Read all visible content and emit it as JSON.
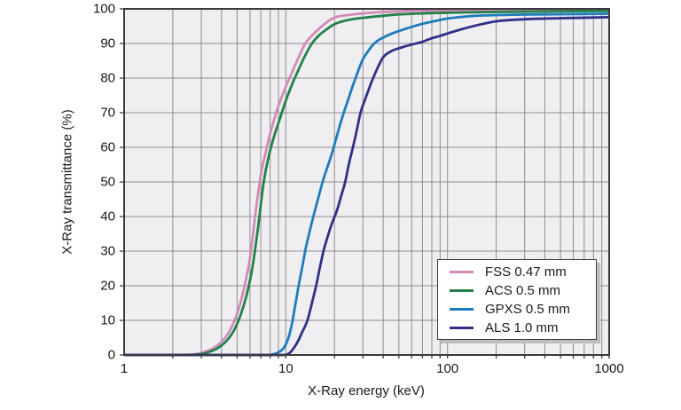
{
  "figure": {
    "background": "#ffffff",
    "plot_bg": "#efeef0",
    "grid_color": "#8f8c91",
    "frame_color": "#3c393d",
    "text_color": "#1a1a1a",
    "legend_shadow": "#c0bcc1"
  },
  "chart_data": {
    "type": "line",
    "title": "",
    "xlabel": "X-Ray energy (keV)",
    "ylabel": "X-Ray transmittance (%)",
    "x_scale": "log",
    "xlim": [
      1,
      1000
    ],
    "ylim": [
      0,
      100
    ],
    "grid": "on",
    "legend_position": "inside-lower-right",
    "x_ticks": [
      1,
      10,
      100,
      1000
    ],
    "y_ticks": [
      0,
      10,
      20,
      30,
      40,
      50,
      60,
      70,
      80,
      90,
      100
    ],
    "series": [
      {
        "name": "FSS 0.47 mm",
        "color": "#d38ab8",
        "points": [
          [
            1,
            0
          ],
          [
            2,
            0
          ],
          [
            2.6,
            0.1
          ],
          [
            3,
            0.6
          ],
          [
            3.5,
            1.8
          ],
          [
            4,
            3.8
          ],
          [
            4.5,
            7
          ],
          [
            5,
            12
          ],
          [
            5.5,
            19
          ],
          [
            6,
            28
          ],
          [
            6.5,
            41
          ],
          [
            7,
            52
          ],
          [
            7.5,
            58.5
          ],
          [
            8,
            64
          ],
          [
            9,
            72
          ],
          [
            10,
            77.5
          ],
          [
            11,
            82
          ],
          [
            12,
            86
          ],
          [
            13.2,
            90
          ],
          [
            14,
            91.5
          ],
          [
            16,
            94.2
          ],
          [
            18,
            96.2
          ],
          [
            20,
            97.5
          ],
          [
            25,
            98.3
          ],
          [
            30,
            98.7
          ],
          [
            40,
            99.1
          ],
          [
            60,
            99.4
          ],
          [
            100,
            99.6
          ],
          [
            200,
            99.7
          ],
          [
            400,
            99.8
          ],
          [
            1000,
            99.9
          ]
        ]
      },
      {
        "name": "ACS 0.5 mm",
        "color": "#23814a",
        "points": [
          [
            1,
            0
          ],
          [
            2.2,
            0
          ],
          [
            2.8,
            0.1
          ],
          [
            3.2,
            0.6
          ],
          [
            3.7,
            1.7
          ],
          [
            4.2,
            3.6
          ],
          [
            4.7,
            6.5
          ],
          [
            5.2,
            11
          ],
          [
            5.7,
            17
          ],
          [
            6.2,
            25
          ],
          [
            6.7,
            36
          ],
          [
            7.3,
            50
          ],
          [
            7.8,
            57
          ],
          [
            8.5,
            63.5
          ],
          [
            9,
            67
          ],
          [
            10,
            73.5
          ],
          [
            11,
            78.5
          ],
          [
            12,
            82.5
          ],
          [
            13,
            86
          ],
          [
            14.5,
            90
          ],
          [
            16,
            92.3
          ],
          [
            18,
            94.2
          ],
          [
            20,
            95.6
          ],
          [
            25,
            96.9
          ],
          [
            30,
            97.4
          ],
          [
            40,
            98
          ],
          [
            50,
            98.4
          ],
          [
            70,
            98.7
          ],
          [
            100,
            98.9
          ],
          [
            200,
            99.1
          ],
          [
            500,
            99.3
          ],
          [
            1000,
            99.4
          ]
        ]
      },
      {
        "name": "GPXS 0.5 mm",
        "color": "#1d7cbd",
        "points": [
          [
            1,
            0
          ],
          [
            4,
            0
          ],
          [
            6.5,
            0
          ],
          [
            7.8,
            0
          ],
          [
            8.5,
            0.3
          ],
          [
            9,
            0.8
          ],
          [
            9.7,
            2
          ],
          [
            10.3,
            4.5
          ],
          [
            10.8,
            8
          ],
          [
            11.4,
            14
          ],
          [
            12,
            20
          ],
          [
            12.7,
            26
          ],
          [
            13.3,
            31
          ],
          [
            14,
            35.5
          ],
          [
            15,
            41
          ],
          [
            16,
            46
          ],
          [
            17,
            50.5
          ],
          [
            18.3,
            55
          ],
          [
            19.5,
            59
          ],
          [
            20.6,
            63
          ],
          [
            21.8,
            67
          ],
          [
            23,
            70.5
          ],
          [
            24.2,
            73.5
          ],
          [
            25.6,
            77
          ],
          [
            27,
            80
          ],
          [
            28.5,
            83
          ],
          [
            30,
            85.5
          ],
          [
            32,
            87.5
          ],
          [
            34.4,
            89.5
          ],
          [
            37,
            90.8
          ],
          [
            40,
            91.7
          ],
          [
            45,
            92.8
          ],
          [
            50,
            93.6
          ],
          [
            60,
            94.8
          ],
          [
            70,
            95.7
          ],
          [
            80,
            96.3
          ],
          [
            90,
            96.8
          ],
          [
            100,
            97.2
          ],
          [
            130,
            97.8
          ],
          [
            170,
            98.1
          ],
          [
            250,
            98.3
          ],
          [
            400,
            98.4
          ],
          [
            1000,
            98.6
          ]
        ]
      },
      {
        "name": "ALS 1.0 mm",
        "color": "#313089",
        "points": [
          [
            1,
            0
          ],
          [
            5,
            0
          ],
          [
            8,
            0
          ],
          [
            9.8,
            0
          ],
          [
            10.5,
            0.5
          ],
          [
            11.2,
            2
          ],
          [
            11.9,
            4
          ],
          [
            12.6,
            6.5
          ],
          [
            13.6,
            10
          ],
          [
            14.5,
            15
          ],
          [
            15.4,
            20
          ],
          [
            16.2,
            25
          ],
          [
            17.1,
            30
          ],
          [
            18.1,
            34
          ],
          [
            19.1,
            37.5
          ],
          [
            20.8,
            42
          ],
          [
            22,
            46
          ],
          [
            23.3,
            50
          ],
          [
            24.5,
            55
          ],
          [
            26,
            60
          ],
          [
            27.5,
            65
          ],
          [
            29,
            70
          ],
          [
            31.6,
            75
          ],
          [
            34,
            79
          ],
          [
            37,
            83
          ],
          [
            40,
            86
          ],
          [
            45,
            87.8
          ],
          [
            50,
            88.6
          ],
          [
            55,
            89.2
          ],
          [
            60,
            89.7
          ],
          [
            70,
            90.5
          ],
          [
            80,
            91.5
          ],
          [
            90,
            92.2
          ],
          [
            100,
            92.9
          ],
          [
            120,
            94
          ],
          [
            150,
            95.2
          ],
          [
            200,
            96.4
          ],
          [
            300,
            97
          ],
          [
            500,
            97.3
          ],
          [
            1000,
            97.6
          ]
        ]
      }
    ]
  }
}
